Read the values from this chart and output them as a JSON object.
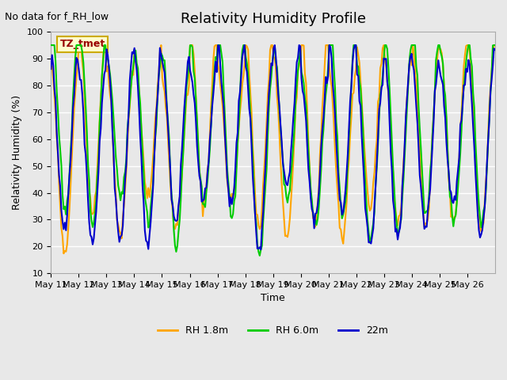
{
  "title": "Relativity Humidity Profile",
  "subtitle": "No data for f_RH_low",
  "xlabel": "Time",
  "ylabel": "Relativity Humidity (%)",
  "ylim": [
    10,
    100
  ],
  "yticks": [
    10,
    20,
    30,
    40,
    50,
    60,
    70,
    80,
    90,
    100
  ],
  "bg_color": "#e8e8e8",
  "plot_bg_color": "#e8e8e8",
  "grid_color": "#ffffff",
  "legend_labels": [
    "RH 1.8m",
    "RH 6.0m",
    "22m"
  ],
  "legend_colors": [
    "#ffa500",
    "#00cc00",
    "#0000cc"
  ],
  "annotation_box_text": "TZ_tmet",
  "annotation_box_edge_color": "#ccaa00",
  "annotation_box_face_color": "#ffffcc",
  "annotation_text_color": "#990000",
  "x_tick_labels": [
    "May 11",
    "May 12",
    "May 13",
    "May 14",
    "May 15",
    "May 16",
    "May 17",
    "May 18",
    "May 19",
    "May 20",
    "May 21",
    "May 22",
    "May 23",
    "May 24",
    "May 25",
    "May 26"
  ],
  "num_days": 16,
  "line_width": 1.5
}
